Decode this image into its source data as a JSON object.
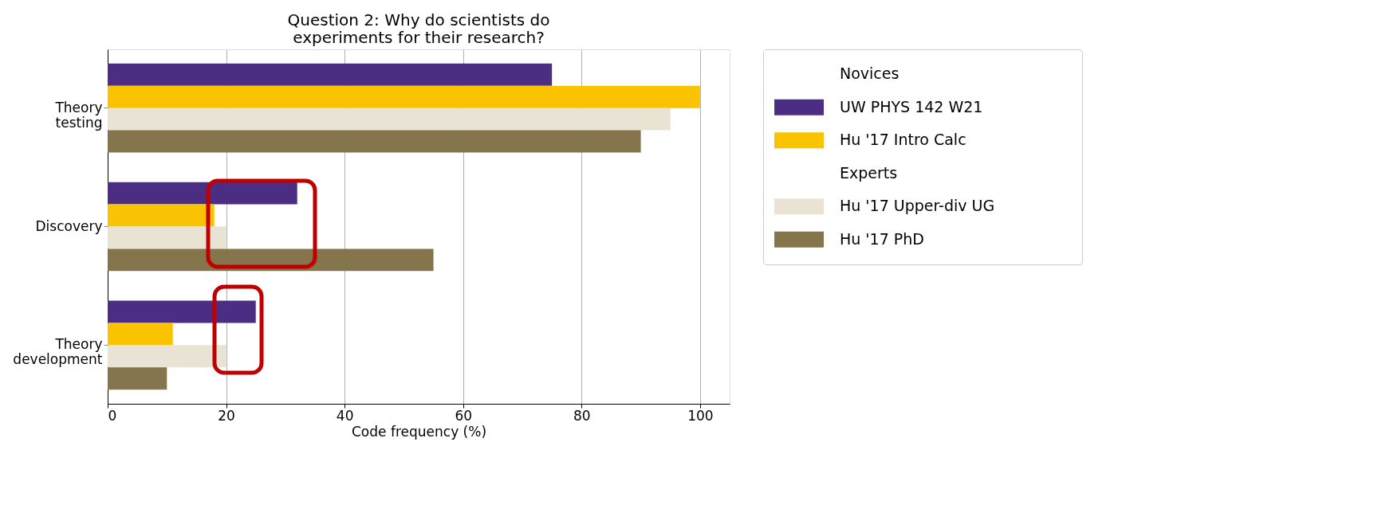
{
  "chart_data": {
    "type": "bar",
    "orientation": "horizontal",
    "title": "Question 2: Why do scientists do experiments for their research?",
    "xlabel": "Code frequency (%)",
    "categories": [
      "Theory testing",
      "Discovery",
      "Theory development"
    ],
    "series": [
      {
        "name": "UW PHYS 142 W21",
        "color": "#4b2e83",
        "values": [
          75,
          32,
          25
        ]
      },
      {
        "name": "Hu '17 Intro Calc",
        "color": "#f9c300",
        "values": [
          100,
          18,
          11
        ]
      },
      {
        "name": "Hu '17 Upper-div UG",
        "color": "#e8e3d3",
        "values": [
          95,
          20,
          20
        ]
      },
      {
        "name": "Hu '17 PhD",
        "color": "#85754d",
        "values": [
          90,
          55,
          10
        ]
      }
    ],
    "annotations": [
      "Novices",
      "Experts"
    ],
    "xlim": [
      0,
      105
    ],
    "xticks": [
      0,
      20,
      40,
      60,
      80,
      100
    ],
    "grid": "x",
    "legend": "right"
  }
}
